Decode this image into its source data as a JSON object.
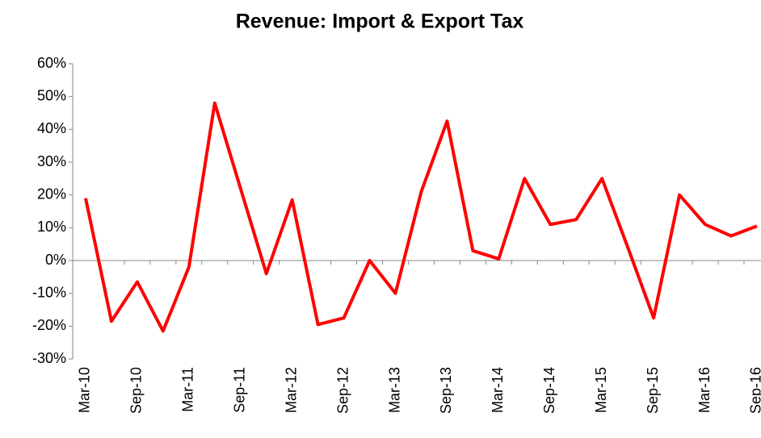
{
  "chart_data": {
    "type": "line",
    "title": "Revenue: Import & Export Tax",
    "categories": [
      "Mar-10",
      null,
      "Sep-10",
      null,
      "Mar-11",
      null,
      "Sep-11",
      null,
      "Mar-12",
      null,
      "Sep-12",
      null,
      "Mar-13",
      null,
      "Sep-13",
      null,
      "Mar-14",
      null,
      "Sep-14",
      null,
      "Mar-15",
      null,
      "Sep-15",
      null,
      "Mar-16",
      null,
      "Sep-16"
    ],
    "values": [
      19,
      -18.5,
      -6.5,
      -21.5,
      -2,
      48,
      22,
      -4,
      18.5,
      -19.5,
      -17.5,
      0,
      -10,
      21,
      42.5,
      3,
      0.5,
      25,
      11,
      12.5,
      25,
      4,
      -17.5,
      20,
      11,
      7.5,
      10.5
    ],
    "color": "#ff0000",
    "ylim": [
      -30,
      60
    ],
    "yticks": [
      {
        "value": -30,
        "label": "-30%"
      },
      {
        "value": -20,
        "label": "-20%"
      },
      {
        "value": -10,
        "label": "-10%"
      },
      {
        "value": 0,
        "label": "0%"
      },
      {
        "value": 10,
        "label": "10%"
      },
      {
        "value": 20,
        "label": "20%"
      },
      {
        "value": 30,
        "label": "30%"
      },
      {
        "value": 40,
        "label": "40%"
      },
      {
        "value": 50,
        "label": "50%"
      },
      {
        "value": 60,
        "label": "60%"
      }
    ]
  }
}
